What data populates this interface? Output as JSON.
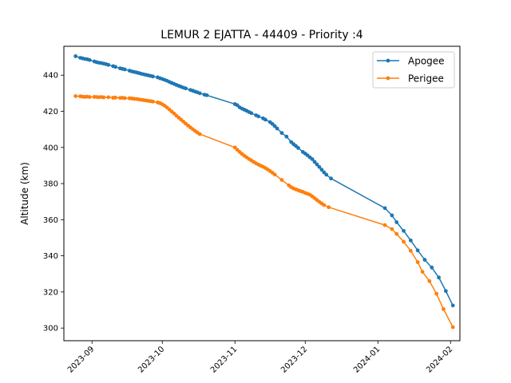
{
  "chart_data": {
    "type": "line",
    "title": "LEMUR 2 EJATTA - 44409 - Priority :4",
    "xlabel": "",
    "ylabel": "Altitude (km)",
    "xlim": [
      "2023-08-20",
      "2024-02-05"
    ],
    "ylim": [
      293,
      456
    ],
    "x_ticks": [
      "2023-09",
      "2023-10",
      "2023-11",
      "2023-12",
      "2024-01",
      "2024-02"
    ],
    "y_ticks": [
      300,
      320,
      340,
      360,
      380,
      400,
      420,
      440
    ],
    "grid": false,
    "legend_position": "top-right",
    "series": [
      {
        "name": "Apogee",
        "color": "#1f77b4",
        "points": [
          [
            "2023-08-25",
            450.5
          ],
          [
            "2023-08-27",
            449.6
          ],
          [
            "2023-08-28",
            449.3
          ],
          [
            "2023-08-29",
            449.0
          ],
          [
            "2023-08-30",
            448.8
          ],
          [
            "2023-08-31",
            448.4
          ],
          [
            "2023-09-02",
            447.6
          ],
          [
            "2023-09-03",
            447.2
          ],
          [
            "2023-09-04",
            446.9
          ],
          [
            "2023-09-05",
            446.7
          ],
          [
            "2023-09-06",
            446.4
          ],
          [
            "2023-09-07",
            446.1
          ],
          [
            "2023-09-08",
            445.7
          ],
          [
            "2023-09-10",
            445.0
          ],
          [
            "2023-09-11",
            444.6
          ],
          [
            "2023-09-13",
            443.8
          ],
          [
            "2023-09-14",
            443.5
          ],
          [
            "2023-09-15",
            443.2
          ],
          [
            "2023-09-17",
            442.5
          ],
          [
            "2023-09-18",
            442.1
          ],
          [
            "2023-09-19",
            441.8
          ],
          [
            "2023-09-20",
            441.5
          ],
          [
            "2023-09-21",
            441.2
          ],
          [
            "2023-09-22",
            440.8
          ],
          [
            "2023-09-23",
            440.5
          ],
          [
            "2023-09-24",
            440.2
          ],
          [
            "2023-09-25",
            439.9
          ],
          [
            "2023-09-26",
            439.6
          ],
          [
            "2023-09-27",
            439.3
          ],
          [
            "2023-09-29",
            438.8
          ],
          [
            "2023-09-30",
            438.3
          ],
          [
            "2023-10-01",
            437.9
          ],
          [
            "2023-10-02",
            437.4
          ],
          [
            "2023-10-03",
            436.9
          ],
          [
            "2023-10-04",
            436.3
          ],
          [
            "2023-10-05",
            435.7
          ],
          [
            "2023-10-06",
            435.2
          ],
          [
            "2023-10-07",
            434.6
          ],
          [
            "2023-10-08",
            434.1
          ],
          [
            "2023-10-09",
            433.6
          ],
          [
            "2023-10-10",
            433.1
          ],
          [
            "2023-10-11",
            432.7
          ],
          [
            "2023-10-13",
            431.8
          ],
          [
            "2023-10-14",
            431.4
          ],
          [
            "2023-10-15",
            430.9
          ],
          [
            "2023-10-16",
            430.5
          ],
          [
            "2023-10-17",
            430.0
          ],
          [
            "2023-10-19",
            429.2
          ],
          [
            "2023-10-20",
            428.9
          ],
          [
            "2023-11-01",
            424.0
          ],
          [
            "2023-11-02",
            423.4
          ],
          [
            "2023-11-03",
            422.2
          ],
          [
            "2023-11-04",
            421.5
          ],
          [
            "2023-11-05",
            420.9
          ],
          [
            "2023-11-06",
            420.3
          ],
          [
            "2023-11-07",
            419.6
          ],
          [
            "2023-11-08",
            419.0
          ],
          [
            "2023-11-10",
            417.8
          ],
          [
            "2023-11-11",
            417.2
          ],
          [
            "2023-11-13",
            416.1
          ],
          [
            "2023-11-14",
            415.4
          ],
          [
            "2023-11-16",
            414.0
          ],
          [
            "2023-11-17",
            413.0
          ],
          [
            "2023-11-18",
            411.8
          ],
          [
            "2023-11-19",
            410.5
          ],
          [
            "2023-11-21",
            408.0
          ],
          [
            "2023-11-23",
            406.0
          ],
          [
            "2023-11-25",
            403.0
          ],
          [
            "2023-11-26",
            401.8
          ],
          [
            "2023-11-27",
            400.8
          ],
          [
            "2023-11-28",
            399.7
          ],
          [
            "2023-11-30",
            397.5
          ],
          [
            "2023-12-01",
            396.6
          ],
          [
            "2023-12-02",
            395.6
          ],
          [
            "2023-12-03",
            394.5
          ],
          [
            "2023-12-04",
            393.5
          ],
          [
            "2023-12-05",
            392.0
          ],
          [
            "2023-12-06",
            390.6
          ],
          [
            "2023-12-07",
            389.2
          ],
          [
            "2023-12-08",
            387.7
          ],
          [
            "2023-12-09",
            386.2
          ],
          [
            "2023-12-10",
            384.9
          ],
          [
            "2023-12-12",
            382.8
          ],
          [
            "2024-01-04",
            366.4
          ],
          [
            "2024-01-07",
            362.4
          ],
          [
            "2024-01-09",
            358.6
          ],
          [
            "2024-01-12",
            353.8
          ],
          [
            "2024-01-15",
            348.5
          ],
          [
            "2024-01-18",
            343.0
          ],
          [
            "2024-01-21",
            337.8
          ],
          [
            "2024-01-24",
            333.5
          ],
          [
            "2024-01-27",
            328.0
          ],
          [
            "2024-01-30",
            320.5
          ],
          [
            "2024-02-02",
            312.5
          ]
        ]
      },
      {
        "name": "Perigee",
        "color": "#ff7f0e",
        "points": [
          [
            "2023-08-25",
            428.4
          ],
          [
            "2023-08-27",
            428.3
          ],
          [
            "2023-08-28",
            428.1
          ],
          [
            "2023-08-29",
            428.0
          ],
          [
            "2023-08-30",
            428.1
          ],
          [
            "2023-08-31",
            427.9
          ],
          [
            "2023-09-02",
            428.0
          ],
          [
            "2023-09-03",
            427.9
          ],
          [
            "2023-09-04",
            427.8
          ],
          [
            "2023-09-05",
            427.9
          ],
          [
            "2023-09-06",
            427.7
          ],
          [
            "2023-09-08",
            427.8
          ],
          [
            "2023-09-10",
            427.5
          ],
          [
            "2023-09-11",
            427.6
          ],
          [
            "2023-09-13",
            427.4
          ],
          [
            "2023-09-14",
            427.5
          ],
          [
            "2023-09-15",
            427.3
          ],
          [
            "2023-09-17",
            427.2
          ],
          [
            "2023-09-18",
            427.1
          ],
          [
            "2023-09-19",
            426.9
          ],
          [
            "2023-09-20",
            426.8
          ],
          [
            "2023-09-21",
            426.6
          ],
          [
            "2023-09-22",
            426.4
          ],
          [
            "2023-09-23",
            426.2
          ],
          [
            "2023-09-24",
            426.0
          ],
          [
            "2023-09-25",
            425.8
          ],
          [
            "2023-09-26",
            425.6
          ],
          [
            "2023-09-27",
            425.4
          ],
          [
            "2023-09-29",
            424.9
          ],
          [
            "2023-09-30",
            424.5
          ],
          [
            "2023-10-01",
            423.9
          ],
          [
            "2023-10-02",
            423.1
          ],
          [
            "2023-10-03",
            422.1
          ],
          [
            "2023-10-04",
            421.0
          ],
          [
            "2023-10-05",
            419.9
          ],
          [
            "2023-10-06",
            418.8
          ],
          [
            "2023-10-07",
            417.6
          ],
          [
            "2023-10-08",
            416.5
          ],
          [
            "2023-10-09",
            415.4
          ],
          [
            "2023-10-10",
            414.3
          ],
          [
            "2023-10-11",
            413.2
          ],
          [
            "2023-10-12",
            412.1
          ],
          [
            "2023-10-13",
            411.1
          ],
          [
            "2023-10-14",
            410.1
          ],
          [
            "2023-10-15",
            409.1
          ],
          [
            "2023-10-16",
            408.2
          ],
          [
            "2023-10-17",
            407.4
          ],
          [
            "2023-11-01",
            400.0
          ],
          [
            "2023-11-02",
            398.7
          ],
          [
            "2023-11-03",
            397.5
          ],
          [
            "2023-11-04",
            396.4
          ],
          [
            "2023-11-05",
            395.4
          ],
          [
            "2023-11-06",
            394.5
          ],
          [
            "2023-11-07",
            393.6
          ],
          [
            "2023-11-08",
            392.8
          ],
          [
            "2023-11-09",
            392.0
          ],
          [
            "2023-11-10",
            391.2
          ],
          [
            "2023-11-11",
            390.5
          ],
          [
            "2023-11-12",
            389.9
          ],
          [
            "2023-11-13",
            389.3
          ],
          [
            "2023-11-14",
            388.6
          ],
          [
            "2023-11-15",
            387.8
          ],
          [
            "2023-11-16",
            386.9
          ],
          [
            "2023-11-17",
            386.0
          ],
          [
            "2023-11-18",
            385.0
          ],
          [
            "2023-11-21",
            382.0
          ],
          [
            "2023-11-24",
            379.0
          ],
          [
            "2023-11-25",
            378.0
          ],
          [
            "2023-11-26",
            377.3
          ],
          [
            "2023-11-27",
            376.8
          ],
          [
            "2023-11-28",
            376.3
          ],
          [
            "2023-11-29",
            375.8
          ],
          [
            "2023-11-30",
            375.4
          ],
          [
            "2023-12-01",
            374.8
          ],
          [
            "2023-12-02",
            374.3
          ],
          [
            "2023-12-03",
            373.8
          ],
          [
            "2023-12-04",
            372.9
          ],
          [
            "2023-12-05",
            371.9
          ],
          [
            "2023-12-06",
            370.9
          ],
          [
            "2023-12-07",
            369.9
          ],
          [
            "2023-12-08",
            369.0
          ],
          [
            "2023-12-09",
            368.1
          ],
          [
            "2023-12-11",
            366.9
          ],
          [
            "2024-01-04",
            357.0
          ],
          [
            "2024-01-07",
            354.8
          ],
          [
            "2024-01-09",
            352.1
          ],
          [
            "2024-01-12",
            347.8
          ],
          [
            "2024-01-15",
            342.8
          ],
          [
            "2024-01-18",
            336.5
          ],
          [
            "2024-01-20",
            331.2
          ],
          [
            "2024-01-23",
            326.0
          ],
          [
            "2024-01-26",
            319.0
          ],
          [
            "2024-01-29",
            310.5
          ],
          [
            "2024-02-02",
            300.5
          ]
        ]
      }
    ]
  }
}
